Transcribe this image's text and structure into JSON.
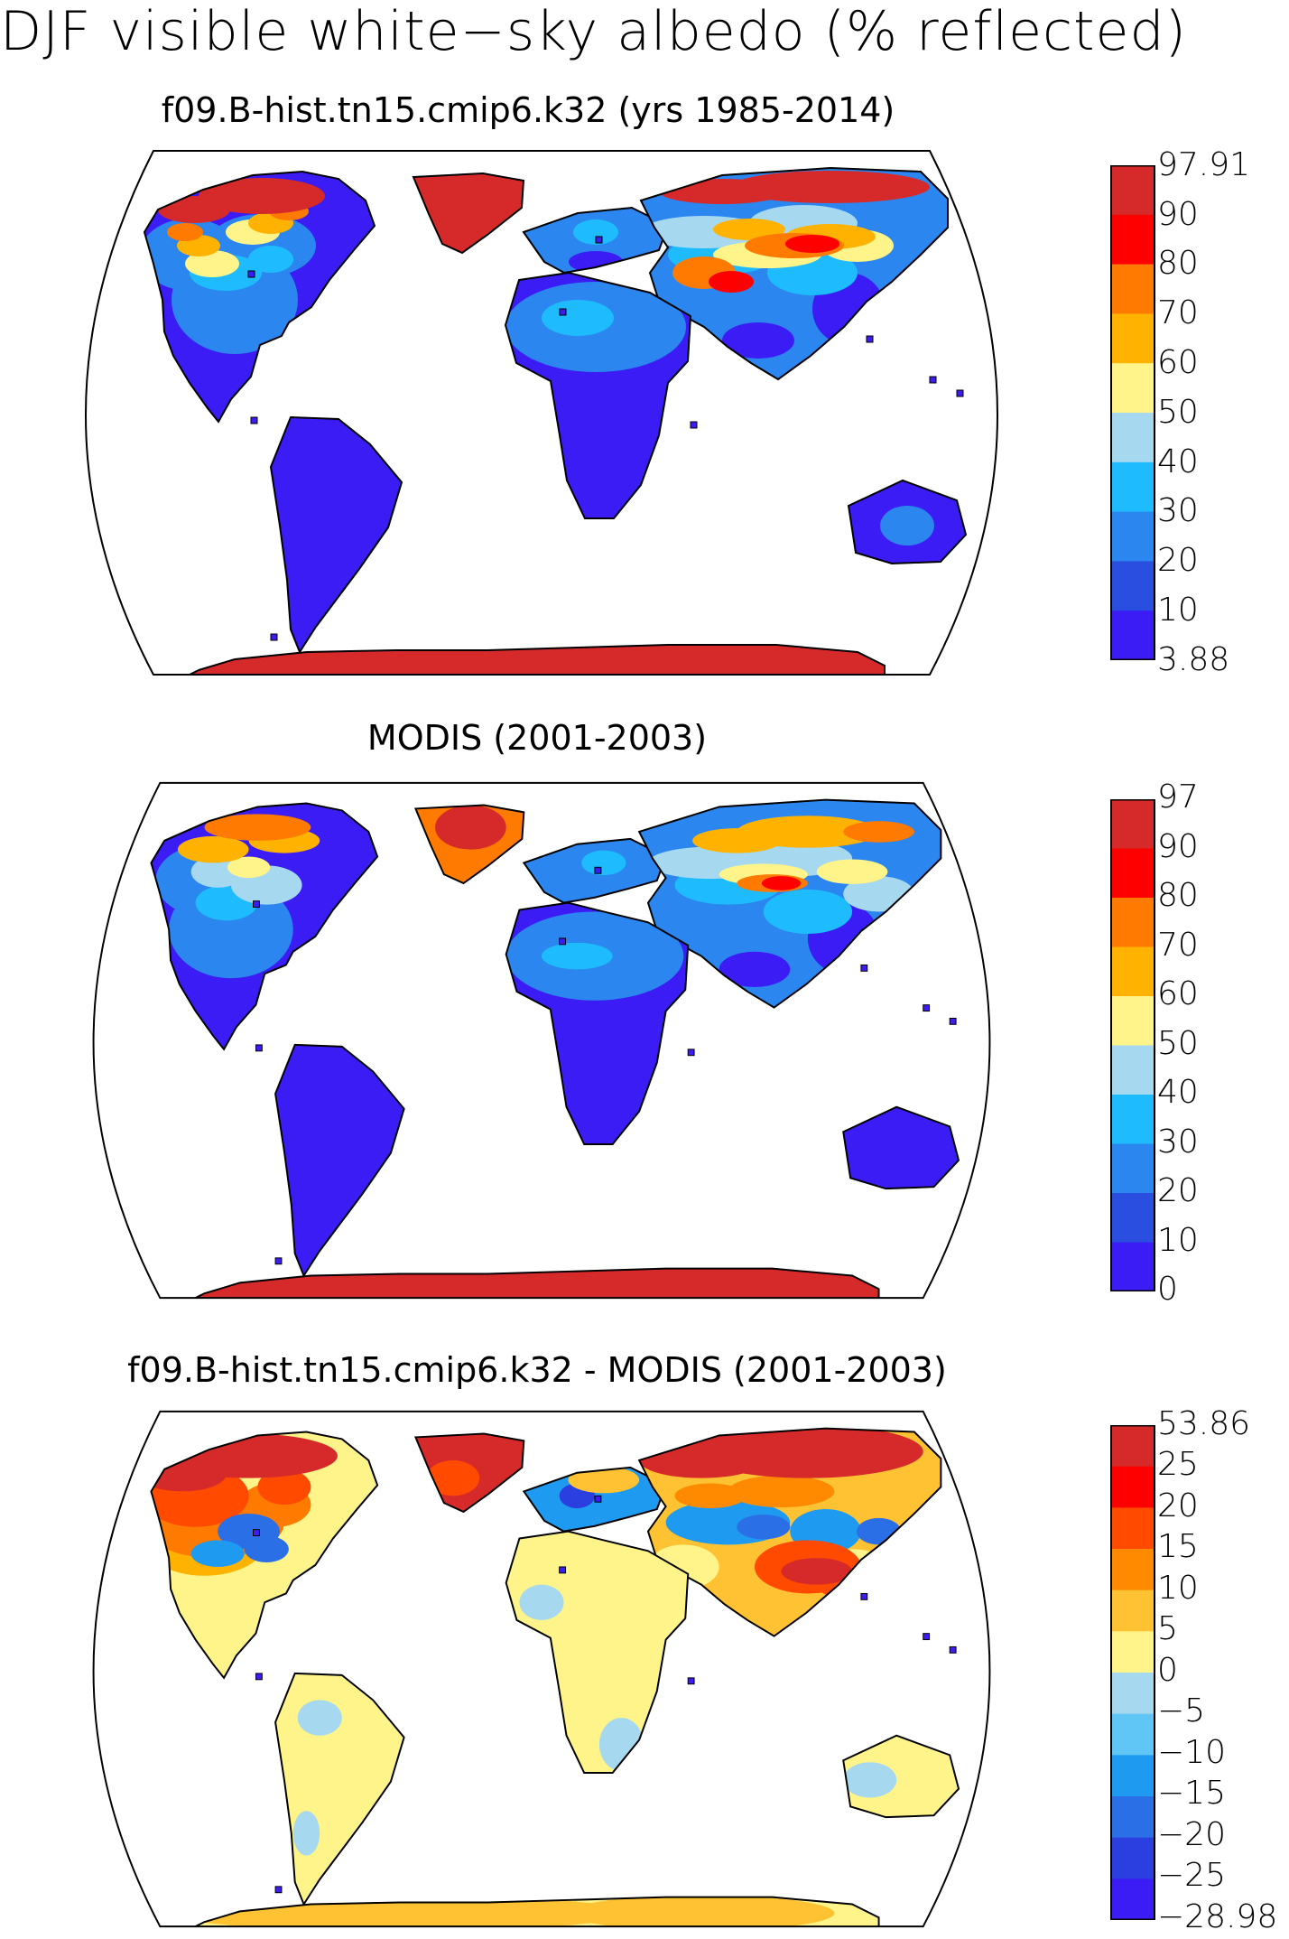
{
  "figure_title": "DJF visible white−sky albedo (% reflected)",
  "panels": [
    {
      "title": "f09.B-hist.tn15.cmip6.k32 (yrs 1985-2014)",
      "colorbar": {
        "labels": [
          "97.91",
          "90",
          "80",
          "70",
          "60",
          "50",
          "40",
          "30",
          "20",
          "10",
          "3.88"
        ],
        "colors": [
          "#d62a2a",
          "#ff0000",
          "#ff7a00",
          "#ffb300",
          "#fff48a",
          "#a6d8f0",
          "#1ebcff",
          "#2b86ef",
          "#2a4fe0",
          "#3b1cf5"
        ]
      }
    },
    {
      "title": "MODIS (2001-2003)",
      "colorbar": {
        "labels": [
          "97",
          "90",
          "80",
          "70",
          "60",
          "50",
          "40",
          "30",
          "20",
          "10",
          "0"
        ],
        "colors": [
          "#d62a2a",
          "#ff0000",
          "#ff7a00",
          "#ffb300",
          "#fff48a",
          "#a6d8f0",
          "#1ebcff",
          "#2b86ef",
          "#2a4fe0",
          "#3b1cf5"
        ]
      }
    },
    {
      "title": "f09.B-hist.tn15.cmip6.k32 - MODIS (2001-2003)",
      "colorbar": {
        "labels": [
          "53.86",
          "25",
          "20",
          "15",
          "10",
          "5",
          "0",
          "−5",
          "−10",
          "−15",
          "−20",
          "−25",
          "−28.98"
        ],
        "colors": [
          "#d62a2a",
          "#ff0000",
          "#ff4a00",
          "#ff8a00",
          "#ffc233",
          "#fff48a",
          "#a6d8f0",
          "#5fc6f5",
          "#1e9bf0",
          "#2b6fe6",
          "#2b3fe0",
          "#3b1cf5"
        ]
      }
    }
  ]
}
